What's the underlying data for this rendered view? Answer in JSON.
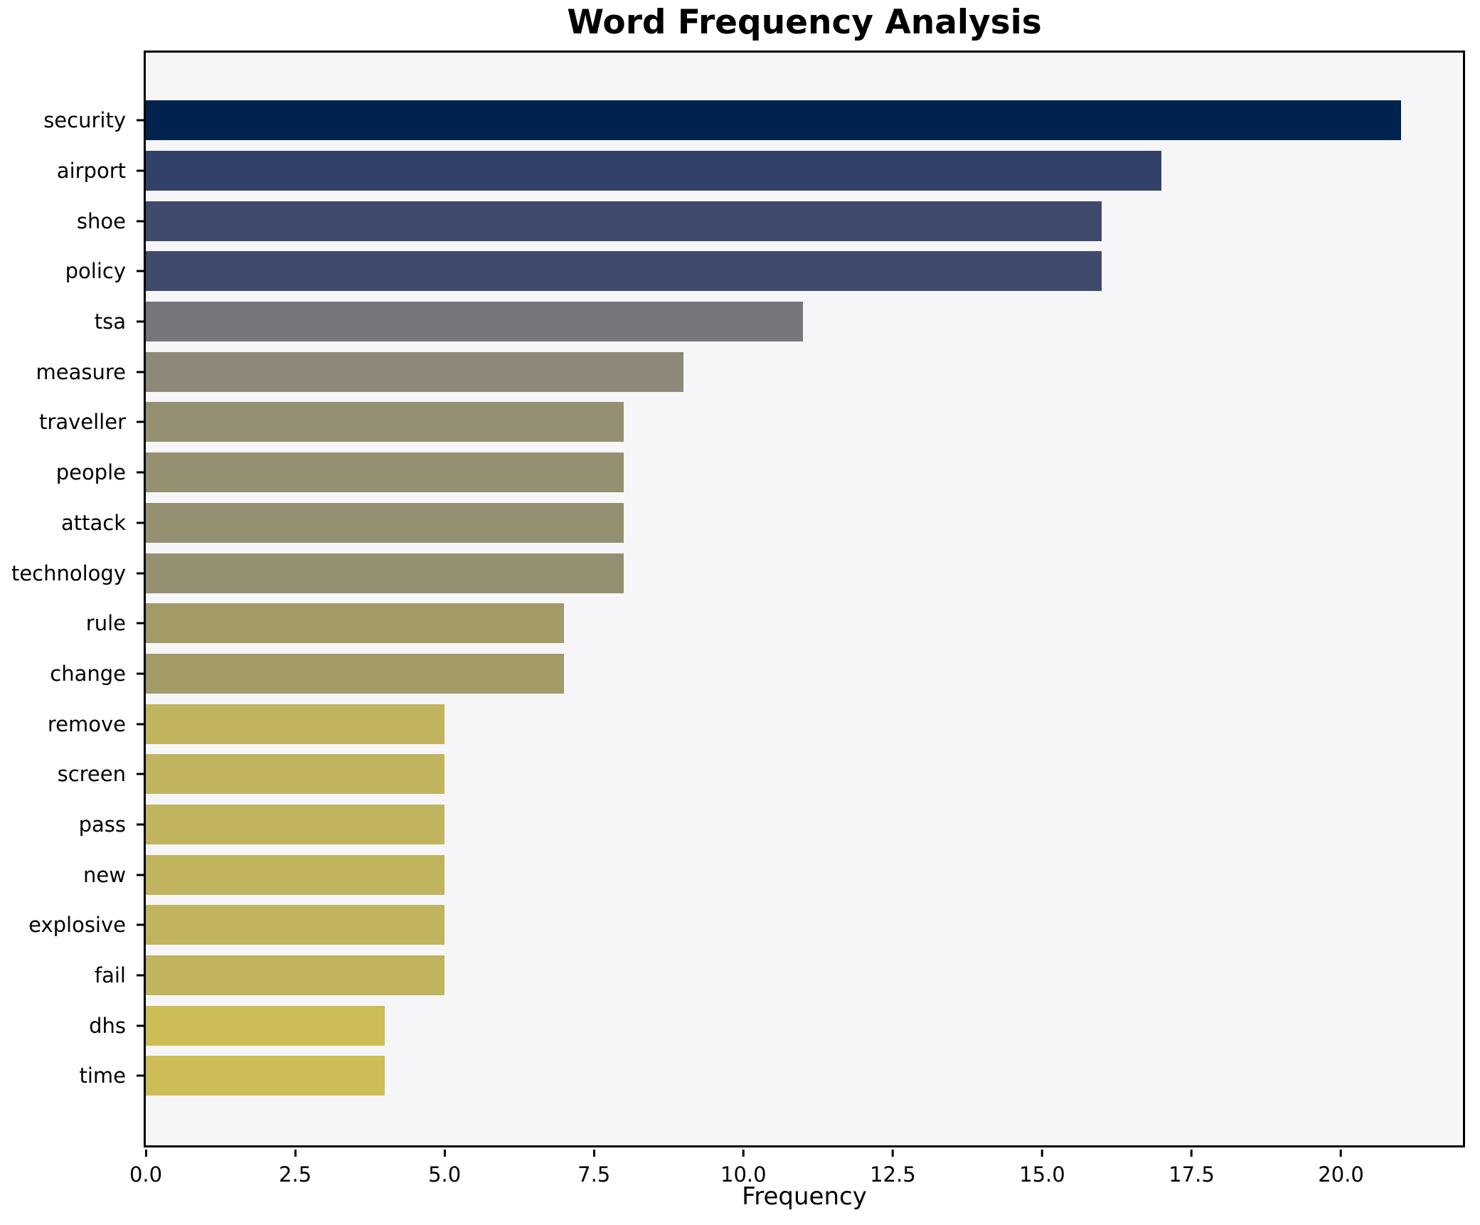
{
  "chart_data": {
    "type": "bar",
    "orientation": "horizontal",
    "title": "Word Frequency Analysis",
    "xlabel": "Frequency",
    "ylabel": "",
    "categories": [
      "security",
      "airport",
      "shoe",
      "policy",
      "tsa",
      "measure",
      "traveller",
      "people",
      "attack",
      "technology",
      "rule",
      "change",
      "remove",
      "screen",
      "pass",
      "new",
      "explosive",
      "fail",
      "dhs",
      "time"
    ],
    "values": [
      21,
      17,
      16,
      16,
      11,
      9,
      8,
      8,
      8,
      8,
      7,
      7,
      5,
      5,
      5,
      5,
      5,
      5,
      4,
      4
    ],
    "bar_colors": [
      "#00234e",
      "#32416a",
      "#3f4a6c",
      "#3f4a6c",
      "#74767b",
      "#8d8878",
      "#959071",
      "#959071",
      "#959071",
      "#959071",
      "#a29a67",
      "#a29a67",
      "#c0b45e",
      "#c0b45e",
      "#c0b45e",
      "#c0b45e",
      "#c0b45e",
      "#c0b45e",
      "#ccbd56",
      "#ccbd56"
    ],
    "xlim": [
      0,
      22.04
    ],
    "x_tick_values": [
      0,
      2.5,
      5,
      7.5,
      10,
      12.5,
      15,
      17.5,
      20
    ],
    "x_tick_labels": [
      "0.0",
      "2.5",
      "5.0",
      "7.5",
      "10.0",
      "12.5",
      "15.0",
      "17.5",
      "20.0"
    ],
    "grid": false,
    "legend": "none",
    "plot_background": "#f6f6f8",
    "spine_color": "#000000",
    "colormap": "cividis"
  }
}
